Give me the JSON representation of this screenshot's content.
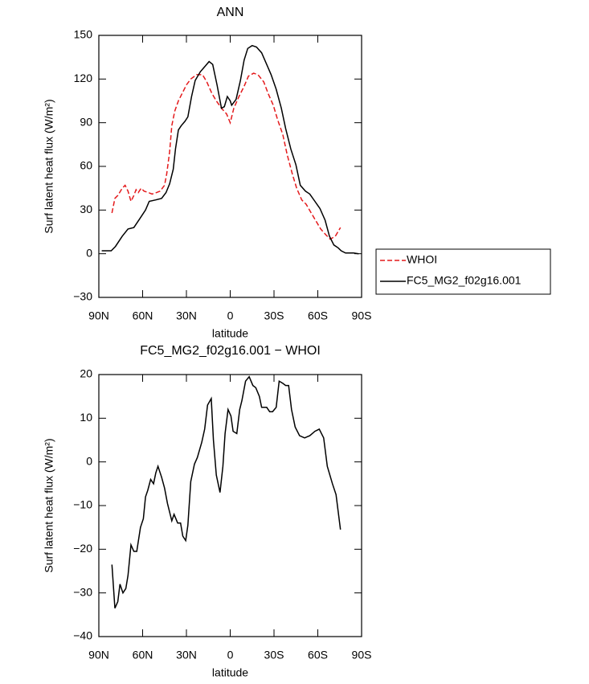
{
  "chart_data": [
    {
      "type": "line",
      "title": "ANN",
      "xlabel": "latitude",
      "ylabel": "Surf latent heat flux (W/m²)",
      "xlim": [
        90,
        -90
      ],
      "xticks": [
        {
          "value": 90,
          "label": "90N"
        },
        {
          "value": 60,
          "label": "60N"
        },
        {
          "value": 30,
          "label": "30N"
        },
        0,
        {
          "value": -30,
          "label": "30S"
        },
        {
          "value": -60,
          "label": "60S"
        },
        {
          "value": -90,
          "label": "90S"
        }
      ],
      "ylim": [
        -30,
        150
      ],
      "yticks": [
        {
          "value": -30,
          "label": "−30"
        },
        0,
        30,
        60,
        90,
        120,
        150
      ],
      "legend": "right",
      "series": [
        {
          "name": "WHOI",
          "color": "#e41a1c",
          "dashed": true,
          "x": [
            81,
            79,
            77,
            74,
            72,
            70,
            68,
            66,
            64.5,
            63,
            61,
            59,
            56,
            53.5,
            50.5,
            48,
            45,
            43.5,
            41.5,
            40,
            38,
            35.5,
            33,
            30,
            27,
            23,
            19,
            16,
            12.5,
            9.5,
            6,
            2.5,
            0,
            -2.5,
            -6,
            -9.5,
            -12.5,
            -16,
            -19,
            -23,
            -26,
            -29.5,
            -32.5,
            -36,
            -39,
            -42.5,
            -45.5,
            -49,
            -52,
            -55.5,
            -59,
            -62,
            -65.5,
            -68.5,
            -72,
            -75.5
          ],
          "values": [
            28,
            38,
            40,
            45,
            47,
            43,
            36,
            40,
            44,
            42,
            45,
            43,
            42,
            41,
            42,
            43,
            47,
            55,
            70,
            88,
            98,
            105,
            110,
            116,
            120,
            123,
            123,
            118,
            110,
            105,
            100,
            96,
            90,
            100,
            108,
            115,
            122,
            124,
            123,
            118,
            110,
            102,
            92,
            82,
            68,
            55,
            45,
            37,
            34,
            28,
            22,
            17,
            13,
            10,
            12,
            18
          ]
        },
        {
          "name": "FC5_MG2_f02g16.001",
          "color": "#000000",
          "dashed": false,
          "x": [
            88,
            81.5,
            78.6,
            74,
            70,
            66,
            62,
            58,
            55.5,
            51,
            47,
            44,
            41.5,
            39,
            37.5,
            35.5,
            33.5,
            31,
            29,
            26.5,
            24,
            20.5,
            17,
            14.5,
            12,
            9,
            6,
            4,
            2,
            0,
            -1,
            -4,
            -7,
            -9.5,
            -12,
            -15,
            -18,
            -21.5,
            -25,
            -28,
            -31.5,
            -35,
            -38,
            -41.5,
            -45,
            -48,
            -51.5,
            -54.5,
            -58,
            -61.5,
            -65,
            -68,
            -71,
            -74,
            -76,
            -79,
            -84.5,
            -88
          ],
          "values": [
            2,
            2,
            5,
            12,
            17,
            18,
            24,
            30,
            36,
            37,
            38,
            42,
            48,
            58,
            72,
            85,
            88,
            91,
            94,
            108,
            119,
            125,
            129,
            132,
            130,
            116,
            100,
            101,
            108,
            105,
            102,
            106,
            119,
            133,
            141,
            143,
            142,
            138,
            130,
            123,
            113,
            100,
            86,
            72,
            61,
            47,
            43,
            41,
            36,
            31,
            23,
            12,
            6,
            4,
            2,
            0.5,
            0.5,
            0
          ]
        }
      ]
    },
    {
      "type": "line",
      "title": "FC5_MG2_f02g16.001 − WHOI",
      "xlabel": "latitude",
      "ylabel": "Surf latent heat flux (W/m²)",
      "xlim": [
        90,
        -90
      ],
      "xticks": [
        {
          "value": 90,
          "label": "90N"
        },
        {
          "value": 60,
          "label": "60N"
        },
        {
          "value": 30,
          "label": "30N"
        },
        0,
        {
          "value": -30,
          "label": "30S"
        },
        {
          "value": -60,
          "label": "60S"
        },
        {
          "value": -90,
          "label": "90S"
        }
      ],
      "ylim": [
        -40,
        20
      ],
      "yticks": [
        {
          "value": -40,
          "label": "−40"
        },
        {
          "value": -30,
          "label": "−30"
        },
        {
          "value": -20,
          "label": "−20"
        },
        {
          "value": -10,
          "label": "−10"
        },
        0,
        10,
        20
      ],
      "color": "#000000",
      "x": [
        81,
        79,
        77,
        75.5,
        73.5,
        71.5,
        70,
        68,
        66,
        64,
        61.5,
        59.5,
        58,
        56.5,
        54.5,
        52.5,
        51,
        49.5,
        47,
        45,
        43,
        40,
        38.5,
        36,
        34,
        32.5,
        30.5,
        29,
        27,
        24.5,
        22.5,
        19.5,
        17.5,
        15.5,
        13,
        11.5,
        9.5,
        7,
        5,
        3.5,
        1.5,
        -0.5,
        -2,
        -4.5,
        -6.5,
        -8,
        -10.5,
        -13,
        -15.5,
        -17.5,
        -20,
        -21.5,
        -25,
        -27,
        -29,
        -31.5,
        -33.5,
        -36,
        -38,
        -40,
        -42,
        -44.5,
        -47.5,
        -51,
        -54.5,
        -58,
        -61,
        -64,
        -66.5,
        -70,
        -72.5,
        -75.5
      ],
      "values": [
        -23.5,
        -33.5,
        -32,
        -28,
        -30,
        -29,
        -26,
        -19,
        -20.5,
        -20.5,
        -15,
        -13,
        -8,
        -6.5,
        -4,
        -5,
        -2.5,
        -1,
        -3.5,
        -6,
        -9.5,
        -13.5,
        -12,
        -14,
        -14,
        -17,
        -18,
        -14.5,
        -4.5,
        -0.5,
        1,
        4.5,
        7.5,
        13,
        14.5,
        5,
        -3,
        -7,
        -1,
        6.5,
        12,
        10.5,
        7,
        6.5,
        12,
        14,
        18.5,
        19.5,
        17.5,
        17,
        15,
        12.5,
        12.5,
        11.5,
        11.5,
        12.5,
        18.5,
        18,
        17.5,
        17.5,
        12,
        8,
        6,
        5.5,
        6,
        7,
        7.5,
        5.5,
        -1,
        -5,
        -7.5,
        -15.5
      ]
    }
  ]
}
